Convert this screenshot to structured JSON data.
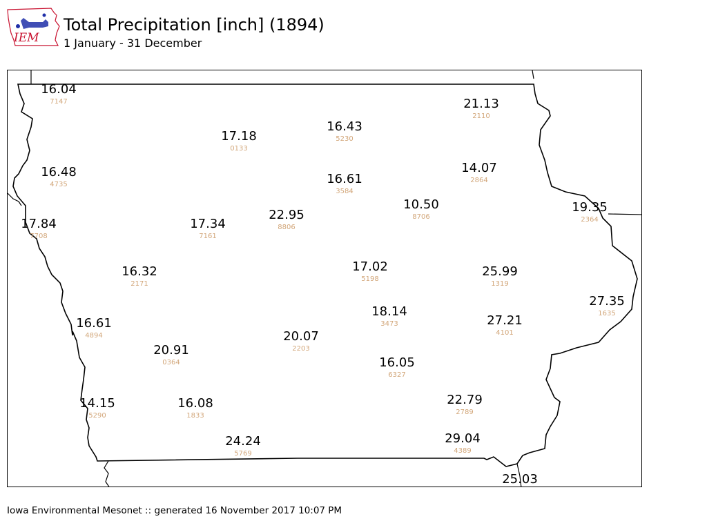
{
  "header": {
    "title": "Total Precipitation [inch] (1894)",
    "subtitle": "1 January - 31 December",
    "logo_text": "IEM"
  },
  "footer": {
    "text": "Iowa Environmental Mesonet :: generated 16 November 2017 10:07 PM"
  },
  "colors": {
    "value_text": "#000000",
    "station_id_text": "#d2a679",
    "logo_red": "#c8102e",
    "logo_blue": "#1f2fa8"
  },
  "stations": [
    {
      "value": "16.04",
      "id": "7147"
    },
    {
      "value": "21.13",
      "id": "2110"
    },
    {
      "value": "16.43",
      "id": "5230"
    },
    {
      "value": "17.18",
      "id": "0133"
    },
    {
      "value": "16.48",
      "id": "4735"
    },
    {
      "value": "14.07",
      "id": "2864"
    },
    {
      "value": "16.61",
      "id": "3584"
    },
    {
      "value": "10.50",
      "id": "8706"
    },
    {
      "value": "19.35",
      "id": "2364"
    },
    {
      "value": "17.84",
      "id": "7708"
    },
    {
      "value": "17.34",
      "id": "7161"
    },
    {
      "value": "22.95",
      "id": "8806"
    },
    {
      "value": "16.32",
      "id": "2171"
    },
    {
      "value": "17.02",
      "id": "5198"
    },
    {
      "value": "25.99",
      "id": "1319"
    },
    {
      "value": "27.35",
      "id": "1635"
    },
    {
      "value": "18.14",
      "id": "3473"
    },
    {
      "value": "27.21",
      "id": "4101"
    },
    {
      "value": "16.61",
      "id": "4894"
    },
    {
      "value": "20.07",
      "id": "2203"
    },
    {
      "value": "20.91",
      "id": "0364"
    },
    {
      "value": "16.05",
      "id": "6327"
    },
    {
      "value": "22.79",
      "id": "2789"
    },
    {
      "value": "14.15",
      "id": "5290"
    },
    {
      "value": "16.08",
      "id": "1833"
    },
    {
      "value": "24.24",
      "id": "5769"
    },
    {
      "value": "29.04",
      "id": "4389"
    },
    {
      "value": "25.03",
      "id": ""
    }
  ]
}
